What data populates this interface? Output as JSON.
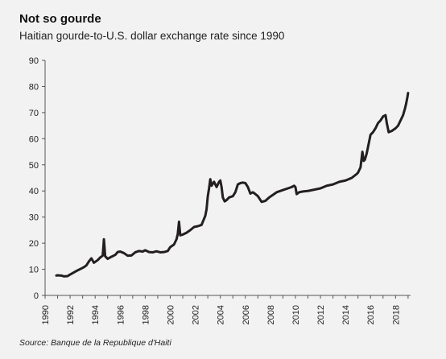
{
  "title": "Not so gourde",
  "subtitle": "Haitian gourde-to-U.S. dollar exchange rate since 1990",
  "source": "Source: Banque de la Republique d'Haiti",
  "chart_data": {
    "type": "line",
    "title": "Not so gourde",
    "subtitle": "Haitian gourde-to-U.S. dollar exchange rate since 1990",
    "xlabel": "",
    "ylabel": "",
    "xlim": [
      1990,
      2019.2
    ],
    "ylim": [
      0,
      90
    ],
    "x_ticks": [
      1990,
      1992,
      1994,
      1996,
      1998,
      2000,
      2002,
      2004,
      2006,
      2008,
      2010,
      2012,
      2014,
      2016,
      2018
    ],
    "y_ticks": [
      0,
      10,
      20,
      30,
      40,
      50,
      60,
      70,
      80,
      90
    ],
    "grid": false,
    "legend": "none",
    "line_color": "#231f20",
    "series": [
      {
        "x": [
          1990.9,
          1991.0,
          1991.3,
          1991.5,
          1991.8,
          1992.0,
          1992.3,
          1992.6,
          1992.9,
          1993.1,
          1993.3,
          1993.5,
          1993.7,
          1993.9,
          1994.2,
          1994.4,
          1994.6,
          1994.65,
          1994.7,
          1994.8,
          1995.0,
          1995.3,
          1995.6,
          1995.8,
          1996.0,
          1996.3,
          1996.6,
          1996.9,
          1997.2,
          1997.5,
          1997.8,
          1998.0,
          1998.3,
          1998.6,
          1998.9,
          1999.2,
          1999.5,
          1999.8,
          2000.0,
          2000.3,
          2000.5,
          2000.6,
          2000.7,
          2000.8,
          2001.0,
          2001.3,
          2001.6,
          2001.9,
          2002.2,
          2002.5,
          2002.8,
          2002.9,
          2003.0,
          2003.1,
          2003.2,
          2003.3,
          2003.5,
          2003.7,
          2003.8,
          2003.9,
          2004.0,
          2004.1,
          2004.2,
          2004.35,
          2004.5,
          2004.7,
          2005.0,
          2005.2,
          2005.4,
          2005.6,
          2005.8,
          2006.0,
          2006.2,
          2006.4,
          2006.6,
          2006.8,
          2007.0,
          2007.3,
          2007.6,
          2007.9,
          2008.2,
          2008.5,
          2008.8,
          2009.1,
          2009.4,
          2009.7,
          2009.9,
          2010.0,
          2010.1,
          2010.3,
          2010.6,
          2011.0,
          2011.5,
          2012.0,
          2012.5,
          2013.0,
          2013.5,
          2014.0,
          2014.5,
          2014.9,
          2015.0,
          2015.2,
          2015.35,
          2015.45,
          2015.55,
          2015.7,
          2015.85,
          2016.0,
          2016.2,
          2016.4,
          2016.6,
          2016.8,
          2017.0,
          2017.2,
          2017.3,
          2017.45,
          2017.7,
          2018.0,
          2018.2,
          2018.4,
          2018.6,
          2018.75,
          2018.85,
          2018.95,
          2019.0
        ],
        "y": [
          7.6,
          7.7,
          7.6,
          7.3,
          7.4,
          8.0,
          8.8,
          9.6,
          10.3,
          10.8,
          11.5,
          13.0,
          14.2,
          12.5,
          13.5,
          14.5,
          15.2,
          18.0,
          21.5,
          15.0,
          14.0,
          14.8,
          15.5,
          16.6,
          16.8,
          16.2,
          15.2,
          15.3,
          16.5,
          17.0,
          16.8,
          17.3,
          16.6,
          16.5,
          16.9,
          16.5,
          16.6,
          17.0,
          18.5,
          19.5,
          21.5,
          23.5,
          28.2,
          23.0,
          23.3,
          24.0,
          25.0,
          26.2,
          26.5,
          27.0,
          30.5,
          33.0,
          38.0,
          41.0,
          44.5,
          42.0,
          43.5,
          41.5,
          42.5,
          43.5,
          44.0,
          41.5,
          37.5,
          36.0,
          36.5,
          37.5,
          38.0,
          39.5,
          42.5,
          43.0,
          43.2,
          43.0,
          41.5,
          39.0,
          39.5,
          38.8,
          38.0,
          35.8,
          36.2,
          37.5,
          38.5,
          39.5,
          40.0,
          40.5,
          41.0,
          41.5,
          42.0,
          41.5,
          38.8,
          39.5,
          39.8,
          40.0,
          40.5,
          41.0,
          42.0,
          42.5,
          43.5,
          44.0,
          45.0,
          46.5,
          47.0,
          49.0,
          55.0,
          51.5,
          52.0,
          54.5,
          58.0,
          61.5,
          62.5,
          64.0,
          66.0,
          67.0,
          68.5,
          69.0,
          66.0,
          62.5,
          63.0,
          64.0,
          65.0,
          67.0,
          69.0,
          71.5,
          73.5,
          76.0,
          77.5
        ]
      }
    ]
  }
}
